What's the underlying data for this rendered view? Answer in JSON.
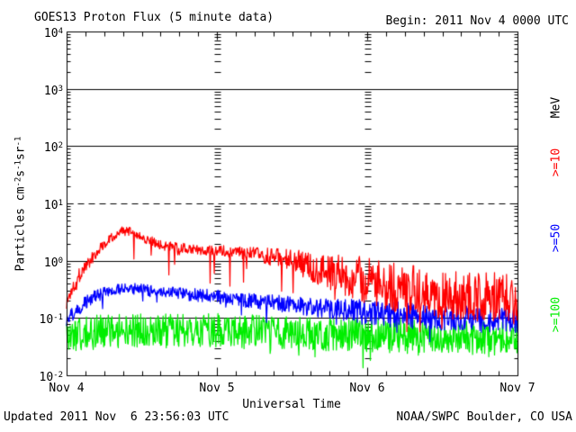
{
  "header": {
    "title": "GOES13 Proton Flux (5 minute data)",
    "begin_label": "Begin: 2011 Nov 4 0000 UTC"
  },
  "footer": {
    "updated": "Updated 2011 Nov  6 23:56:03 UTC",
    "source": "NOAA/SWPC Boulder, CO USA"
  },
  "chart_data": {
    "type": "line",
    "title": "GOES13 Proton Flux (5 minute data)",
    "xlabel": "Universal Time",
    "ylabel_parts": [
      "Particles cm",
      {
        "sup": "-2"
      },
      "s",
      {
        "sup": "-1"
      },
      "sr",
      {
        "sup": "-1"
      }
    ],
    "right_axis_unit": "MeV",
    "x_start": "2011 Nov 4 0000 UTC",
    "x_days": 3,
    "x_tick_labels": [
      "Nov 4",
      "Nov 5",
      "Nov 6",
      "Nov 7"
    ],
    "x_minor_tick_hours": 3,
    "y_scale": "log",
    "ylim": [
      0.01,
      10000
    ],
    "y_decade_exponents": [
      4,
      3,
      2,
      1,
      0,
      -1,
      -2
    ],
    "solid_gridline_exponents": [
      3,
      2,
      0,
      -1
    ],
    "threshold_line": {
      "value_exponent": 1,
      "style": "dashed"
    },
    "sample_minutes": 5,
    "series": [
      {
        "name": ">=10",
        "color": "#ff0000",
        "units": "MeV",
        "trend_hourly": [
          0.18,
          0.35,
          0.55,
          0.8,
          1.1,
          1.5,
          2.0,
          2.5,
          3.0,
          3.3,
          3.2,
          3.0,
          2.6,
          2.3,
          2.1,
          1.9,
          1.8,
          1.75,
          1.7,
          1.65,
          1.6,
          1.55,
          1.5,
          1.5,
          1.5,
          1.5,
          1.45,
          1.4,
          1.4,
          1.35,
          1.3,
          1.25,
          1.2,
          1.15,
          1.1,
          1.05,
          0.95,
          0.9,
          0.85,
          0.8,
          0.75,
          0.7,
          0.65,
          0.6,
          0.57,
          0.53,
          0.5,
          0.47,
          0.44,
          0.42,
          0.4,
          0.38,
          0.36,
          0.35,
          0.33,
          0.32,
          0.31,
          0.3,
          0.29,
          0.28,
          0.27,
          0.26,
          0.26,
          0.25,
          0.25,
          0.24,
          0.24,
          0.23,
          0.23,
          0.22,
          0.22,
          0.21,
          0.21
        ],
        "noise_log_breakpoints": [
          [
            0,
            0.15
          ],
          [
            6,
            0.09
          ],
          [
            10,
            0.08
          ],
          [
            24,
            0.09
          ],
          [
            30,
            0.12
          ],
          [
            36,
            0.22
          ],
          [
            42,
            0.32
          ],
          [
            48,
            0.42
          ],
          [
            72,
            0.45
          ]
        ],
        "spike_prob": 0.025,
        "spike_depth_log": 0.7
      },
      {
        "name": ">=50",
        "color": "#0000ff",
        "units": "MeV",
        "trend_hourly": [
          0.09,
          0.12,
          0.15,
          0.19,
          0.22,
          0.25,
          0.28,
          0.3,
          0.32,
          0.33,
          0.33,
          0.32,
          0.31,
          0.3,
          0.29,
          0.285,
          0.28,
          0.27,
          0.265,
          0.26,
          0.255,
          0.25,
          0.245,
          0.24,
          0.235,
          0.23,
          0.22,
          0.215,
          0.21,
          0.205,
          0.2,
          0.195,
          0.19,
          0.185,
          0.18,
          0.175,
          0.17,
          0.165,
          0.16,
          0.155,
          0.15,
          0.148,
          0.145,
          0.142,
          0.14,
          0.137,
          0.134,
          0.13,
          0.127,
          0.124,
          0.121,
          0.118,
          0.116,
          0.114,
          0.112,
          0.11,
          0.108,
          0.107,
          0.105,
          0.104,
          0.102,
          0.101,
          0.1,
          0.099,
          0.098,
          0.097,
          0.096,
          0.095,
          0.094,
          0.093,
          0.092,
          0.091,
          0.09
        ],
        "noise_log_breakpoints": [
          [
            0,
            0.13
          ],
          [
            10,
            0.1
          ],
          [
            24,
            0.12
          ],
          [
            40,
            0.16
          ],
          [
            48,
            0.22
          ],
          [
            72,
            0.24
          ]
        ],
        "spike_prob": 0.02,
        "spike_depth_log": 0.3
      },
      {
        "name": ">=100",
        "color": "#00ee00",
        "units": "MeV",
        "trend_hourly": [
          0.045,
          0.048,
          0.05,
          0.053,
          0.055,
          0.058,
          0.06,
          0.06,
          0.06,
          0.06,
          0.06,
          0.06,
          0.06,
          0.06,
          0.06,
          0.06,
          0.06,
          0.06,
          0.06,
          0.06,
          0.06,
          0.06,
          0.06,
          0.06,
          0.06,
          0.059,
          0.059,
          0.058,
          0.058,
          0.057,
          0.057,
          0.056,
          0.056,
          0.056,
          0.055,
          0.055,
          0.055,
          0.054,
          0.054,
          0.053,
          0.053,
          0.052,
          0.052,
          0.052,
          0.051,
          0.051,
          0.051,
          0.05,
          0.05,
          0.05,
          0.049,
          0.049,
          0.049,
          0.048,
          0.048,
          0.048,
          0.048,
          0.047,
          0.047,
          0.047,
          0.047,
          0.047,
          0.046,
          0.046,
          0.046,
          0.046,
          0.046,
          0.046,
          0.045,
          0.045,
          0.045,
          0.045,
          0.045
        ],
        "noise_log_breakpoints": [
          [
            0,
            0.3
          ],
          [
            72,
            0.3
          ]
        ],
        "spike_prob": 0.02,
        "spike_depth_log": 0.35
      }
    ]
  },
  "colors": {
    "axis": "#000000",
    "background": "#ffffff",
    "text": "#000000"
  }
}
